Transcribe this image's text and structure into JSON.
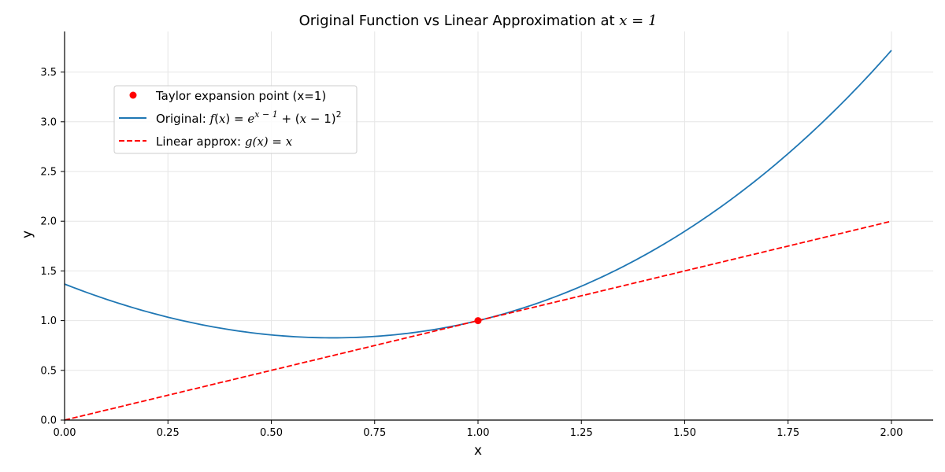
{
  "chart_data": {
    "type": "line",
    "title": "Original Function vs Linear Approximation at x = 1",
    "title_parts": {
      "text": "Original Function vs Linear Approximation at ",
      "math": "x = 1"
    },
    "xlabel": "x",
    "ylabel": "y",
    "xlim": [
      0.0,
      2.1
    ],
    "ylim": [
      0.0,
      3.9
    ],
    "xticks": [
      0.0,
      0.25,
      0.5,
      0.75,
      1.0,
      1.25,
      1.5,
      1.75,
      2.0
    ],
    "xtick_labels": [
      "0.00",
      "0.25",
      "0.50",
      "0.75",
      "1.00",
      "1.25",
      "1.50",
      "1.75",
      "2.00"
    ],
    "yticks": [
      0.0,
      0.5,
      1.0,
      1.5,
      2.0,
      2.5,
      3.0,
      3.5
    ],
    "ytick_labels": [
      "0.0",
      "0.5",
      "1.0",
      "1.5",
      "2.0",
      "2.5",
      "3.0",
      "3.5"
    ],
    "grid": true,
    "legend_position": "upper left",
    "series": [
      {
        "name": "Original: f(x) = e^(x-1) + (x-1)^2",
        "color": "#1f77b4",
        "style": "solid",
        "x": [
          0.0,
          0.1,
          0.2,
          0.3,
          0.4,
          0.5,
          0.6,
          0.65,
          0.7,
          0.8,
          0.9,
          1.0,
          1.1,
          1.2,
          1.3,
          1.4,
          1.5,
          1.6,
          1.7,
          1.8,
          1.9,
          2.0
        ],
        "values": [
          1.368,
          1.217,
          1.089,
          0.987,
          0.909,
          0.857,
          0.83,
          0.827,
          0.831,
          0.859,
          0.915,
          1.0,
          1.115,
          1.261,
          1.44,
          1.652,
          1.899,
          2.182,
          2.504,
          2.866,
          3.27,
          3.718
        ]
      },
      {
        "name": "Linear approx: g(x) = x",
        "color": "#ff0000",
        "style": "dashed",
        "x": [
          0.0,
          2.0
        ],
        "values": [
          0.0,
          2.0
        ]
      },
      {
        "name": "Taylor expansion point (x=1)",
        "color": "#ff0000",
        "style": "marker",
        "x": [
          1.0
        ],
        "values": [
          1.0
        ]
      }
    ],
    "legend": [
      {
        "label": "Taylor expansion point (x=1)",
        "marker": "dot",
        "color": "#ff0000"
      },
      {
        "label": "Original: f(x) = e^(x−1) + (x−1)^2",
        "marker": "line",
        "color": "#1f77b4"
      },
      {
        "label": "Linear approx: g(x) = x",
        "marker": "dashed",
        "color": "#ff0000"
      }
    ]
  },
  "legend_text": {
    "item0": "Taylor expansion point (x=1)",
    "item1_prefix": "Original: ",
    "item1_f": "f",
    "item1_paren1": "(",
    "item1_x": "x",
    "item1_paren2": ") = ",
    "item1_e": "e",
    "item1_sup": "x − 1",
    "item1_rest": " + (",
    "item1_x2": "x",
    "item1_rest2": " − 1)",
    "item1_sup2": "2",
    "item2_prefix": "Linear approx: ",
    "item2_math": "g(x) = x"
  },
  "colors": {
    "original": "#1f77b4",
    "linear": "#ff0000",
    "grid": "#e6e6e6",
    "axis": "#000000"
  }
}
